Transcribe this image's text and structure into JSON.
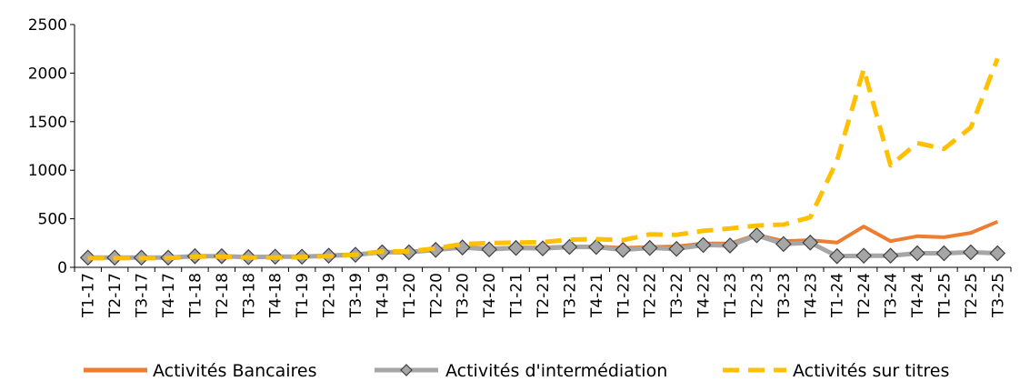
{
  "chart_data": {
    "type": "line",
    "title": "",
    "xlabel": "",
    "ylabel": "",
    "ylim": [
      0,
      2500
    ],
    "yticks": [
      0,
      500,
      1000,
      1500,
      2000,
      2500
    ],
    "grid": false,
    "legend_position": "bottom",
    "categories": [
      "T1-17",
      "T2-17",
      "T3-17",
      "T4-17",
      "T1-18",
      "T2-18",
      "T3-18",
      "T4-18",
      "T1-19",
      "T2-19",
      "T3-19",
      "T4-19",
      "T1-20",
      "T2-20",
      "T3-20",
      "T4-20",
      "T1-21",
      "T2-21",
      "T3-21",
      "T4-21",
      "T1-22",
      "T2-22",
      "T3-22",
      "T4-22",
      "T1-23",
      "T2-23",
      "T3-23",
      "T4-23",
      "T1-24",
      "T2-24",
      "T3-24",
      "T4-24",
      "T1-25",
      "T2-25",
      "T3-25"
    ],
    "series": [
      {
        "name": "Activités Bancaires",
        "color": "#ED7D31",
        "style": "solid",
        "marker": "none",
        "values": [
          100,
          100,
          100,
          100,
          115,
          115,
          110,
          110,
          110,
          125,
          135,
          160,
          160,
          185,
          210,
          195,
          205,
          205,
          215,
          215,
          200,
          210,
          215,
          245,
          245,
          335,
          270,
          280,
          255,
          420,
          270,
          320,
          310,
          355,
          470
        ]
      },
      {
        "name": "Activités d'intermédiation",
        "color": "#A6A6A6",
        "style": "solid",
        "marker": "diamond",
        "values": [
          100,
          100,
          100,
          100,
          115,
          115,
          105,
          110,
          110,
          120,
          130,
          155,
          155,
          180,
          205,
          185,
          200,
          195,
          210,
          210,
          180,
          200,
          190,
          230,
          225,
          330,
          240,
          255,
          115,
          120,
          120,
          145,
          145,
          155,
          145
        ]
      },
      {
        "name": "Activités sur titres",
        "color": "#FFC000",
        "style": "dashed",
        "marker": "none",
        "values": [
          95,
          95,
          95,
          95,
          110,
          110,
          100,
          100,
          105,
          115,
          130,
          165,
          165,
          195,
          240,
          250,
          255,
          260,
          285,
          290,
          280,
          340,
          335,
          375,
          400,
          430,
          440,
          515,
          1100,
          2040,
          1050,
          1280,
          1220,
          1440,
          2150
        ]
      }
    ]
  }
}
